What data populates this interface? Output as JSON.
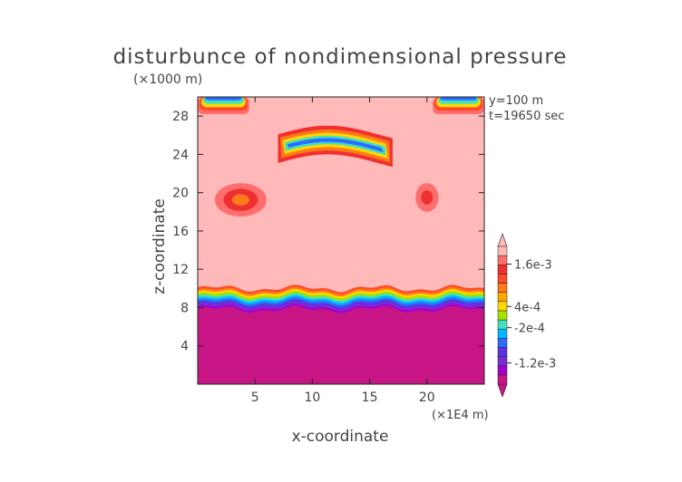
{
  "chart_data": {
    "type": "heatmap",
    "title": "disturbunce of nondimensional pressure",
    "ylabel": "z-coordinate",
    "xlabel": "x-coordinate",
    "y_unit": "(×1000 m)",
    "x_unit": "(×1E4 m)",
    "annotations": [
      "y=100 m",
      "t=19650 sec"
    ],
    "xlim": [
      0,
      25
    ],
    "ylim": [
      0,
      30
    ],
    "x_ticks": [
      5,
      10,
      15,
      20
    ],
    "x_tick_labels": [
      "5",
      "10",
      "15",
      "20"
    ],
    "y_ticks": [
      4,
      8,
      12,
      16,
      20,
      24,
      28
    ],
    "y_tick_labels": [
      "4",
      "8",
      "12",
      "16",
      "20",
      "24",
      "28"
    ],
    "colorbar": {
      "labels": [
        {
          "text": "1.6e-3",
          "value": 0.0016
        },
        {
          "text": "4e-4",
          "value": 0.0004
        },
        {
          "text": "-2e-4",
          "value": -0.0002
        },
        {
          "text": "-1.2e-3",
          "value": -0.0012
        }
      ],
      "colors": [
        "#c71585",
        "#a500cc",
        "#7b2bd6",
        "#5a34e0",
        "#2e6bff",
        "#00b7ff",
        "#40e0c0",
        "#a8e000",
        "#ffd700",
        "#ffa500",
        "#ff7a1a",
        "#ff4a2a",
        "#f03030",
        "#ff6e6e",
        "#ffb9b9"
      ],
      "extend": "both"
    },
    "regions": [
      {
        "name": "upper-layer-background",
        "x": [
          0,
          25
        ],
        "z": [
          10,
          30
        ],
        "level": "positive-max",
        "color": "#ffb9b9"
      },
      {
        "name": "lower-layer",
        "x": [
          0,
          25
        ],
        "z": [
          0,
          7.8
        ],
        "level": "negative-min",
        "color": "#c71585"
      },
      {
        "name": "interface-band",
        "x": [
          0,
          25
        ],
        "z": [
          7.8,
          10
        ],
        "level": "gradient",
        "color": "#ff4a2a"
      },
      {
        "name": "feature-top-left",
        "x": [
          0,
          4.5
        ],
        "z": [
          28.2,
          30
        ],
        "level": "gradient",
        "color": "#ff4a2a"
      },
      {
        "name": "feature-top-right",
        "x": [
          20.5,
          25
        ],
        "z": [
          28.2,
          30
        ],
        "level": "gradient",
        "color": "#ff4a2a"
      },
      {
        "name": "feature-arc-center",
        "x": [
          7,
          17
        ],
        "z": [
          23.5,
          26
        ],
        "level": "gradient",
        "color": "#ff4a2a"
      },
      {
        "name": "feature-left-blob",
        "x": [
          1.5,
          6
        ],
        "z": [
          17.5,
          21
        ],
        "level": "gradient",
        "color": "#ff4a2a"
      },
      {
        "name": "feature-right-blob",
        "x": [
          19,
          21
        ],
        "z": [
          18,
          21
        ],
        "level": "gradient",
        "color": "#ff4a2a"
      }
    ]
  }
}
